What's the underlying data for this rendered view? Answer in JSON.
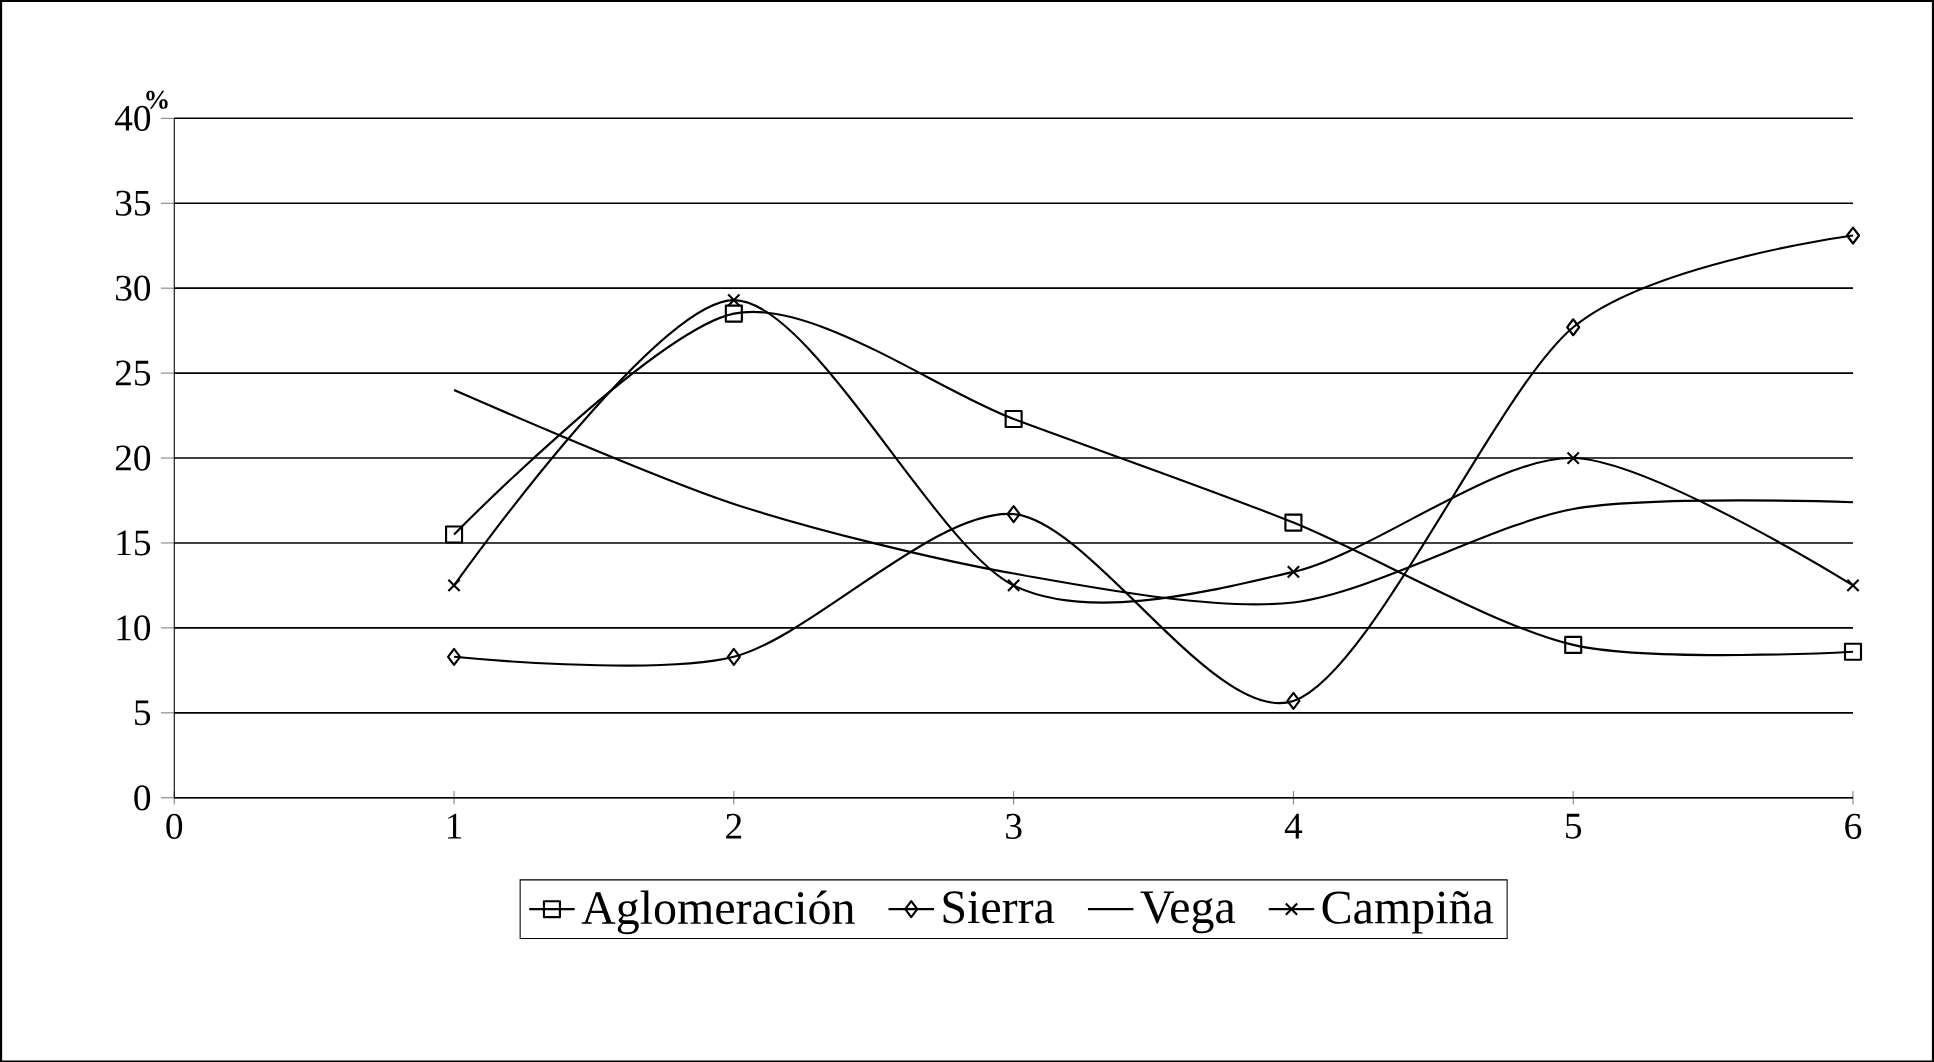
{
  "chart_data": {
    "type": "line",
    "ylabel": "%",
    "xlim": [
      0,
      6
    ],
    "xticks": [
      0,
      1,
      2,
      3,
      4,
      5,
      6
    ],
    "ylim": [
      0,
      40
    ],
    "yticks": [
      0,
      5,
      10,
      15,
      20,
      25,
      30,
      35,
      40
    ],
    "grid": "y",
    "legend": "bottom",
    "x": [
      1,
      2,
      3,
      4,
      5,
      6
    ],
    "series": [
      {
        "name": "Aglomeración",
        "color": "#000000",
        "marker": "square",
        "values": [
          15.5,
          28.5,
          22.3,
          16.2,
          9.0,
          8.6
        ]
      },
      {
        "name": "Sierra",
        "color": "#000000",
        "marker": "diamond",
        "values": [
          8.3,
          8.3,
          16.7,
          5.7,
          27.7,
          33.1
        ]
      },
      {
        "name": "Vega",
        "color": "#000000",
        "marker": "none",
        "values": [
          24,
          17.3,
          13.2,
          11.5,
          17,
          17.4
        ]
      },
      {
        "name": "Campiña",
        "color": "#000000",
        "marker": "cross",
        "values": [
          12.5,
          29.3,
          12.5,
          13.3,
          20,
          12.5
        ]
      }
    ]
  }
}
